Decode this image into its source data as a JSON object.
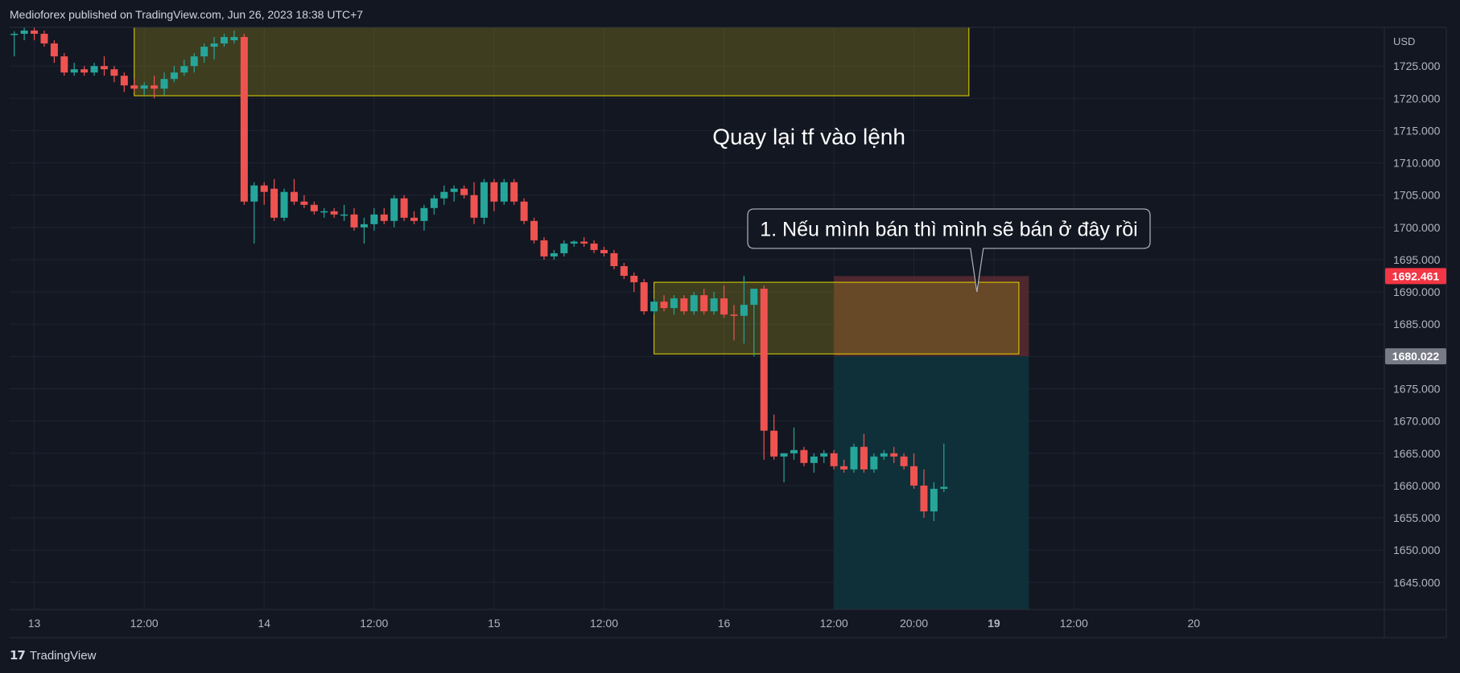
{
  "header": {
    "published": "Medioforex published on TradingView.com, Jun 26, 2023 18:38 UTC+7"
  },
  "footer": {
    "brand": "TradingView",
    "logo_glyph": "17"
  },
  "colors": {
    "background": "#131722",
    "grid": "#1f2433",
    "bull": "#26a69a",
    "bear": "#ef5350",
    "zone_fill": "#3e3c2a",
    "zone_border": "#e5d800",
    "stop_fill": "#5a2a30",
    "target_fill": "#0f3038",
    "text": "#d1d4dc"
  },
  "chart_data": {
    "type": "candlestick",
    "symbol_currency": "USD",
    "ylim": [
      1640.8,
      1731.0
    ],
    "y_ticks": [
      1645,
      1650,
      1655,
      1660,
      1665,
      1670,
      1675,
      1680,
      1685,
      1690,
      1695,
      1700,
      1705,
      1710,
      1715,
      1720,
      1725
    ],
    "y_tick_labels": [
      "1645.000",
      "1650.000",
      "1655.000",
      "1660.000",
      "1665.000",
      "1670.000",
      "1675.000",
      "1680.000",
      "1685.000",
      "1690.000",
      "1695.000",
      "1700.000",
      "1705.000",
      "1710.000",
      "1715.000",
      "1720.000",
      "1725.000"
    ],
    "x_labels": [
      {
        "label": "13",
        "bar": 2.5
      },
      {
        "label": "12:00",
        "bar": 13.5
      },
      {
        "label": "14",
        "bar": 25.5
      },
      {
        "label": "12:00",
        "bar": 36.5
      },
      {
        "label": "15",
        "bar": 48.5
      },
      {
        "label": "12:00",
        "bar": 59.5
      },
      {
        "label": "16",
        "bar": 71.5
      },
      {
        "label": "12:00",
        "bar": 82.5
      },
      {
        "label": "20:00",
        "bar": 90.5
      },
      {
        "label": "19",
        "bar": 98.5,
        "bold": true
      },
      {
        "label": "12:00",
        "bar": 106.5
      },
      {
        "label": "20",
        "bar": 118.5
      }
    ],
    "candles": [
      [
        1730.0,
        1730.4,
        1726.5,
        1730.0
      ],
      [
        1730.0,
        1731.0,
        1729.0,
        1730.5
      ],
      [
        1730.5,
        1731.0,
        1729.0,
        1730.0
      ],
      [
        1730.0,
        1730.5,
        1728.0,
        1728.5
      ],
      [
        1728.5,
        1729.0,
        1725.5,
        1726.5
      ],
      [
        1726.5,
        1727.0,
        1723.5,
        1724.0
      ],
      [
        1724.0,
        1725.5,
        1723.5,
        1724.5
      ],
      [
        1724.5,
        1725.0,
        1723.5,
        1724.0
      ],
      [
        1724.0,
        1725.5,
        1723.5,
        1725.0
      ],
      [
        1725.0,
        1726.5,
        1723.5,
        1724.5
      ],
      [
        1724.5,
        1725.0,
        1722.5,
        1723.5
      ],
      [
        1723.5,
        1724.0,
        1721.0,
        1722.0
      ],
      [
        1722.0,
        1723.0,
        1721.0,
        1721.5
      ],
      [
        1721.5,
        1722.5,
        1720.5,
        1722.0
      ],
      [
        1722.0,
        1723.5,
        1720.0,
        1721.5
      ],
      [
        1721.5,
        1724.0,
        1720.5,
        1723.0
      ],
      [
        1723.0,
        1725.0,
        1722.5,
        1724.0
      ],
      [
        1724.0,
        1726.0,
        1723.5,
        1725.0
      ],
      [
        1725.0,
        1727.0,
        1724.0,
        1726.5
      ],
      [
        1726.5,
        1728.5,
        1725.5,
        1728.0
      ],
      [
        1728.0,
        1729.5,
        1726.0,
        1728.5
      ],
      [
        1728.5,
        1730.0,
        1728.0,
        1729.5
      ],
      [
        1729.0,
        1730.5,
        1728.5,
        1729.5
      ],
      [
        1729.5,
        1730.0,
        1703.5,
        1704.0
      ],
      [
        1704.0,
        1707.0,
        1697.5,
        1706.5
      ],
      [
        1706.5,
        1707.0,
        1703.5,
        1705.5
      ],
      [
        1706.0,
        1707.5,
        1701.0,
        1701.5
      ],
      [
        1701.5,
        1706.0,
        1701.0,
        1705.5
      ],
      [
        1705.5,
        1707.5,
        1703.5,
        1704.0
      ],
      [
        1704.0,
        1705.0,
        1703.0,
        1703.5
      ],
      [
        1703.5,
        1704.0,
        1702.0,
        1702.5
      ],
      [
        1702.5,
        1703.0,
        1701.5,
        1702.5
      ],
      [
        1702.5,
        1703.0,
        1701.5,
        1702.0
      ],
      [
        1702.0,
        1703.5,
        1701.0,
        1702.0
      ],
      [
        1702.0,
        1703.0,
        1699.5,
        1700.0
      ],
      [
        1700.0,
        1701.5,
        1697.5,
        1700.5
      ],
      [
        1700.5,
        1703.0,
        1699.5,
        1702.0
      ],
      [
        1702.0,
        1703.0,
        1700.5,
        1701.0
      ],
      [
        1701.0,
        1705.0,
        1700.0,
        1704.5
      ],
      [
        1704.5,
        1705.0,
        1701.0,
        1701.5
      ],
      [
        1701.5,
        1702.5,
        1700.5,
        1701.0
      ],
      [
        1701.0,
        1703.5,
        1699.5,
        1703.0
      ],
      [
        1703.0,
        1705.0,
        1702.0,
        1704.5
      ],
      [
        1704.5,
        1706.5,
        1703.5,
        1705.5
      ],
      [
        1705.5,
        1706.5,
        1704.0,
        1706.0
      ],
      [
        1706.0,
        1706.5,
        1704.5,
        1705.0
      ],
      [
        1705.0,
        1707.0,
        1700.5,
        1701.5
      ],
      [
        1701.5,
        1707.5,
        1700.5,
        1707.0
      ],
      [
        1707.0,
        1707.5,
        1702.5,
        1704.0
      ],
      [
        1704.0,
        1707.5,
        1703.5,
        1707.0
      ],
      [
        1707.0,
        1707.5,
        1703.5,
        1704.0
      ],
      [
        1704.0,
        1704.5,
        1700.5,
        1701.0
      ],
      [
        1701.0,
        1701.5,
        1697.5,
        1698.0
      ],
      [
        1698.0,
        1698.5,
        1695.0,
        1695.5
      ],
      [
        1695.5,
        1696.5,
        1695.0,
        1696.0
      ],
      [
        1696.0,
        1698.0,
        1695.5,
        1697.5
      ],
      [
        1697.5,
        1698.0,
        1697.0,
        1697.8
      ],
      [
        1697.8,
        1698.5,
        1697.0,
        1697.5
      ],
      [
        1697.5,
        1698.0,
        1696.0,
        1696.5
      ],
      [
        1696.5,
        1697.0,
        1695.5,
        1696.0
      ],
      [
        1696.0,
        1696.5,
        1693.5,
        1694.0
      ],
      [
        1694.0,
        1694.5,
        1692.0,
        1692.5
      ],
      [
        1692.5,
        1693.0,
        1690.0,
        1691.5
      ],
      [
        1691.5,
        1692.0,
        1686.5,
        1687.0
      ],
      [
        1687.0,
        1689.0,
        1686.5,
        1688.5
      ],
      [
        1688.5,
        1689.5,
        1687.0,
        1687.5
      ],
      [
        1687.5,
        1689.5,
        1686.5,
        1689.0
      ],
      [
        1689.0,
        1689.5,
        1686.5,
        1687.0
      ],
      [
        1687.0,
        1690.0,
        1686.5,
        1689.5
      ],
      [
        1689.5,
        1690.5,
        1686.5,
        1687.0
      ],
      [
        1687.0,
        1690.0,
        1686.5,
        1689.0
      ],
      [
        1689.0,
        1691.0,
        1686.0,
        1686.5
      ],
      [
        1686.5,
        1688.0,
        1682.5,
        1686.3
      ],
      [
        1686.3,
        1692.5,
        1682.0,
        1688.0
      ],
      [
        1688.0,
        1690.5,
        1680.0,
        1690.5
      ],
      [
        1690.5,
        1691.0,
        1664.0,
        1668.5
      ],
      [
        1668.5,
        1671.0,
        1664.0,
        1664.5
      ],
      [
        1664.5,
        1665.0,
        1660.5,
        1665.0
      ],
      [
        1665.0,
        1669.0,
        1664.0,
        1665.5
      ],
      [
        1665.5,
        1666.0,
        1663.0,
        1663.5
      ],
      [
        1663.5,
        1665.0,
        1662.0,
        1664.5
      ],
      [
        1664.5,
        1665.5,
        1663.5,
        1665.0
      ],
      [
        1665.0,
        1665.5,
        1662.5,
        1663.0
      ],
      [
        1663.0,
        1664.0,
        1662.0,
        1662.5
      ],
      [
        1662.5,
        1666.5,
        1662.0,
        1666.0
      ],
      [
        1666.0,
        1668.0,
        1662.0,
        1662.5
      ],
      [
        1662.5,
        1665.0,
        1662.0,
        1664.5
      ],
      [
        1664.5,
        1665.5,
        1664.0,
        1665.0
      ],
      [
        1665.0,
        1666.0,
        1663.5,
        1664.5
      ],
      [
        1664.5,
        1665.0,
        1662.5,
        1663.0
      ],
      [
        1663.0,
        1665.0,
        1659.5,
        1660.0
      ],
      [
        1660.0,
        1662.5,
        1655.0,
        1656.0
      ],
      [
        1656.0,
        1660.5,
        1654.5,
        1659.5
      ],
      [
        1659.5,
        1666.5,
        1659.0,
        1659.8
      ]
    ],
    "zones": [
      {
        "bar_start": 12.5,
        "bar_end": 96,
        "top": 1731.0,
        "bottom": 1720.4
      },
      {
        "bar_start": 64.5,
        "bar_end": 101,
        "top": 1691.5,
        "bottom": 1680.4
      }
    ],
    "position": {
      "bar_start": 82.5,
      "bar_end": 102,
      "stop_top": 1692.461,
      "entry": 1680.022,
      "target_bottom": 1640.8
    },
    "price_labels": [
      {
        "value": 1692.461,
        "text": "1692.461",
        "bg": "#f23645"
      },
      {
        "value": 1680.022,
        "text": "1680.022",
        "bg": "#787b86"
      }
    ],
    "annotations": [
      {
        "text": "Quay lại tf vào lệnh",
        "bar": 80,
        "price": 1714.0
      },
      {
        "text": "1. Nếu mình bán thì mình sẽ bán ở đây rồi",
        "bar": 94,
        "price": 1699.8,
        "pointer_bar": 96.8,
        "pointer_price": 1690.0
      }
    ]
  }
}
